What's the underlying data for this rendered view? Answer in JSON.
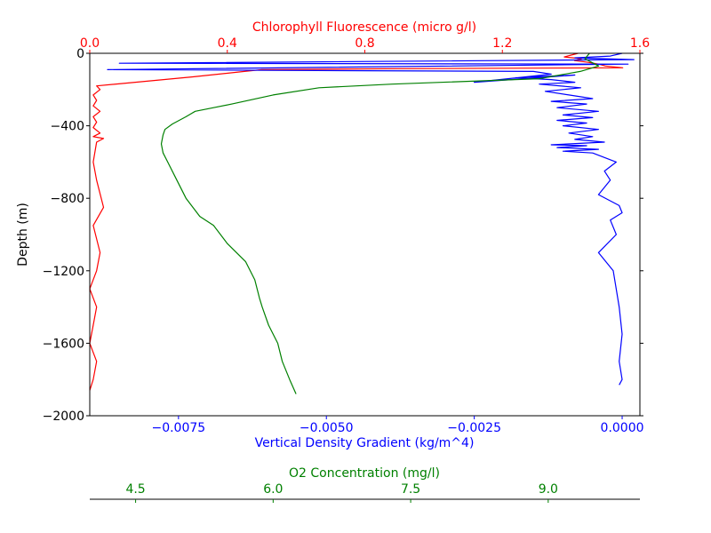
{
  "chart_data": {
    "type": "line",
    "ylabel": "Depth (m)",
    "ylim": [
      -2000,
      0
    ],
    "yticks": [
      "0",
      "−400",
      "−800",
      "−1200",
      "−1600",
      "−2000"
    ],
    "axes": {
      "density": {
        "label": "Vertical Density Gradient (kg/m^4)",
        "color": "#0000ff",
        "position": "bottom",
        "lim": [
          -0.009,
          0.0003
        ],
        "ticks": [
          "−0.0075",
          "−0.0050",
          "−0.0025",
          "0.0000"
        ]
      },
      "chlorophyll": {
        "label": "Chlorophyll Fluorescence (micro g/l)",
        "color": "#ff0000",
        "position": "top",
        "lim": [
          0.0,
          1.6
        ],
        "ticks": [
          "0.0",
          "0.4",
          "0.8",
          "1.2",
          "1.6"
        ]
      },
      "oxygen": {
        "label": "O2 Concentration (mg/l)",
        "color": "#008000",
        "position": "bottom-offset",
        "lim": [
          4.0,
          10.0
        ],
        "ticks": [
          "4.5",
          "6.0",
          "7.5",
          "9.0"
        ]
      }
    },
    "series": [
      {
        "axis": "chlorophyll",
        "color": "#ff0000",
        "x": [
          1.42,
          1.4,
          1.38,
          1.43,
          1.41,
          1.45,
          1.48,
          1.5,
          1.55,
          0.9,
          0.5,
          0.45,
          0.3,
          0.02,
          0.03,
          0.01,
          0.02,
          0.01,
          0.03,
          0.01,
          0.02,
          0.01,
          0.03,
          0.01,
          0.04,
          0.02,
          0.01,
          0.02,
          0.04,
          0.01,
          0.03,
          0.02,
          0.0,
          0.02,
          0.01,
          0.0,
          0.02,
          0.01,
          0.0
        ],
        "y": [
          0,
          -10,
          -20,
          -30,
          -40,
          -50,
          -60,
          -70,
          -80,
          -85,
          -90,
          -100,
          -130,
          -180,
          -200,
          -230,
          -260,
          -290,
          -320,
          -350,
          -380,
          -410,
          -440,
          -460,
          -470,
          -490,
          -600,
          -700,
          -850,
          -950,
          -1100,
          -1200,
          -1300,
          -1400,
          -1500,
          -1600,
          -1700,
          -1800,
          -1860
        ]
      },
      {
        "axis": "density",
        "color": "#0000ff",
        "x": [
          0.0,
          -0.0002,
          -0.0008,
          0.0002,
          -0.0085,
          0.0001,
          -0.0087,
          -0.0015,
          -0.0012,
          -0.0025,
          -0.0008,
          -0.0015,
          -0.0018,
          -0.0012,
          -0.0008,
          -0.0014,
          -0.0007,
          -0.0013,
          -0.0009,
          -0.0005,
          -0.0012,
          -0.0006,
          -0.0011,
          -0.0004,
          -0.001,
          -0.0005,
          -0.0011,
          -0.0006,
          -0.001,
          -0.0004,
          -0.0009,
          -0.0005,
          -0.0008,
          -0.0003,
          -0.0009,
          -0.0012,
          -0.0006,
          -0.0011,
          -0.0004,
          -0.001,
          -0.0005,
          -0.0001,
          -0.0003,
          -0.0002,
          -0.0004,
          -5e-05,
          0.0,
          -0.0002,
          -0.0001,
          -0.0004,
          -0.00015,
          -5e-05,
          0.0,
          -5e-05,
          0.0,
          -5e-05
        ],
        "y": [
          0,
          -15,
          -25,
          -35,
          -55,
          -60,
          -90,
          -100,
          -115,
          -160,
          -120,
          -130,
          -135,
          -145,
          -160,
          -170,
          -190,
          -210,
          -230,
          -250,
          -265,
          -280,
          -300,
          -320,
          -340,
          -355,
          -370,
          -385,
          -400,
          -420,
          -440,
          -460,
          -475,
          -490,
          -500,
          -505,
          -510,
          -520,
          -530,
          -540,
          -550,
          -600,
          -650,
          -700,
          -780,
          -840,
          -880,
          -920,
          -1000,
          -1100,
          -1200,
          -1400,
          -1550,
          -1700,
          -1800,
          -1830
        ]
      },
      {
        "axis": "oxygen",
        "color": "#008000",
        "x": [
          9.45,
          9.4,
          9.55,
          9.35,
          8.9,
          7.3,
          6.5,
          6.0,
          5.55,
          5.35,
          5.15,
          5.05,
          4.9,
          4.82,
          4.8,
          4.78,
          4.8,
          4.85,
          4.95,
          5.05,
          5.2,
          5.35,
          5.5,
          5.7,
          5.8,
          5.85,
          5.88,
          5.95,
          6.05,
          6.1,
          6.18,
          6.25
        ],
        "y": [
          0,
          -30,
          -70,
          -100,
          -140,
          -170,
          -190,
          -230,
          -280,
          -300,
          -320,
          -350,
          -390,
          -420,
          -450,
          -500,
          -550,
          -600,
          -700,
          -800,
          -900,
          -950,
          -1050,
          -1150,
          -1250,
          -1350,
          -1400,
          -1500,
          -1600,
          -1700,
          -1800,
          -1880
        ]
      }
    ]
  }
}
